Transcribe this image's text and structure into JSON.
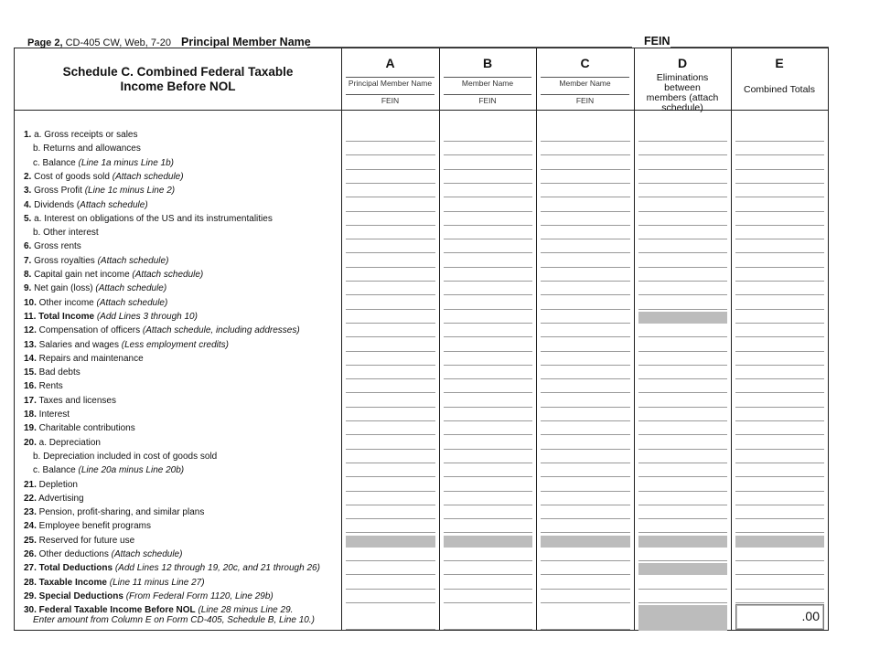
{
  "header": {
    "page": "Page 2,",
    "form": "CD-405 CW, Web, 7-20",
    "principal_member_name_label": "Principal Member Name",
    "fein_label": "FEIN"
  },
  "schedule": {
    "title_line1": "Schedule C. Combined Federal Taxable",
    "title_line2": "Income Before NOL"
  },
  "columns": [
    {
      "letter": "A",
      "name_label": "Principal Member Name",
      "fein_label": "FEIN"
    },
    {
      "letter": "B",
      "name_label": "Member Name",
      "fein_label": "FEIN"
    },
    {
      "letter": "C",
      "name_label": "Member Name",
      "fein_label": "FEIN"
    },
    {
      "letter": "D",
      "desc": "Eliminations between members (attach schedule)"
    },
    {
      "letter": "E",
      "desc": "Combined Totals"
    }
  ],
  "shade_color": "#bcbcbc",
  "rows": [
    {
      "num": "1.",
      "text": " a. Gross receipts or sales",
      "note": ""
    },
    {
      "num": "",
      "text": "b. Returns and allowances",
      "note": "",
      "indent": true
    },
    {
      "num": "",
      "text": "c. Balance ",
      "note": "(Line 1a minus Line 1b)",
      "indent": true
    },
    {
      "num": "2.",
      "text": " Cost of goods sold ",
      "note": "(Attach schedule)"
    },
    {
      "num": "3.",
      "text": " Gross Profit ",
      "note": "(Line 1c minus Line 2)"
    },
    {
      "num": "4.",
      "text": " Dividends (",
      "note": "Attach schedule)"
    },
    {
      "num": "5.",
      "text": " a. Interest on obligations of the US and its instrumentalities",
      "note": ""
    },
    {
      "num": "",
      "text": "b. Other interest",
      "note": "",
      "indent": true
    },
    {
      "num": "6.",
      "text": " Gross rents",
      "note": ""
    },
    {
      "num": "7.",
      "text": " Gross royalties ",
      "note": "(Attach schedule)"
    },
    {
      "num": "8.",
      "text": " Capital gain net income ",
      "note": "(Attach schedule)"
    },
    {
      "num": "9.",
      "text": " Net gain (loss) ",
      "note": "(Attach schedule)"
    },
    {
      "num": "10.",
      "text": " Other income ",
      "note": "(Attach schedule)"
    },
    {
      "num": "11.",
      "text": " Total Income",
      "bold": true,
      "note": "  (Add Lines 3 through 10)",
      "shade": [
        3
      ]
    },
    {
      "num": "12.",
      "text": " Compensation of officers  ",
      "note": "(Attach schedule, including addresses)"
    },
    {
      "num": "13.",
      "text": " Salaries and wages  ",
      "note": "(Less employment credits)"
    },
    {
      "num": "14.",
      "text": " Repairs and maintenance",
      "note": ""
    },
    {
      "num": "15.",
      "text": " Bad debts",
      "note": ""
    },
    {
      "num": "16.",
      "text": " Rents",
      "note": ""
    },
    {
      "num": "17.",
      "text": " Taxes and licenses",
      "note": ""
    },
    {
      "num": "18.",
      "text": " Interest",
      "note": ""
    },
    {
      "num": "19.",
      "text": " Charitable contributions",
      "note": ""
    },
    {
      "num": "20.",
      "text": " a. Depreciation",
      "note": ""
    },
    {
      "num": "",
      "text": "b. Depreciation included in cost of goods sold",
      "note": "",
      "indent": true
    },
    {
      "num": "",
      "text": "c. Balance ",
      "note": "(Line 20a minus Line 20b)",
      "indent": true
    },
    {
      "num": "21.",
      "text": " Depletion",
      "note": ""
    },
    {
      "num": "22.",
      "text": " Advertising",
      "note": ""
    },
    {
      "num": "23.",
      "text": " Pension, profit-sharing, and similar plans",
      "note": ""
    },
    {
      "num": "24.",
      "text": " Employee benefit programs",
      "note": ""
    },
    {
      "num": "25.",
      "text": " Reserved for future use",
      "note": "",
      "shade": [
        0,
        1,
        2,
        3,
        4
      ]
    },
    {
      "num": "26.",
      "text": " Other deductions ",
      "note": "(Attach schedule)"
    },
    {
      "num": "27.",
      "text": " Total Deductions",
      "bold": true,
      "note": "  (Add Lines 12 through 19, 20c, and 21 through 26)",
      "shade": [
        3
      ]
    },
    {
      "num": "28.",
      "text": " Taxable Income",
      "bold": true,
      "note": "  (Line 11 minus Line 27)"
    },
    {
      "num": "29.",
      "text": " Special Deductions",
      "bold": true,
      "note": "  (From Federal Form 1120, Line 29b)"
    },
    {
      "num": "30.",
      "text": " Federal Taxable Income Before NOL",
      "bold": true,
      "note": "  (Line 28 minus Line 29.",
      "note2": "Enter amount from Column E on Form CD-405, Schedule B, Line 10.)",
      "shade": [
        3
      ],
      "total_value": ".00"
    }
  ]
}
